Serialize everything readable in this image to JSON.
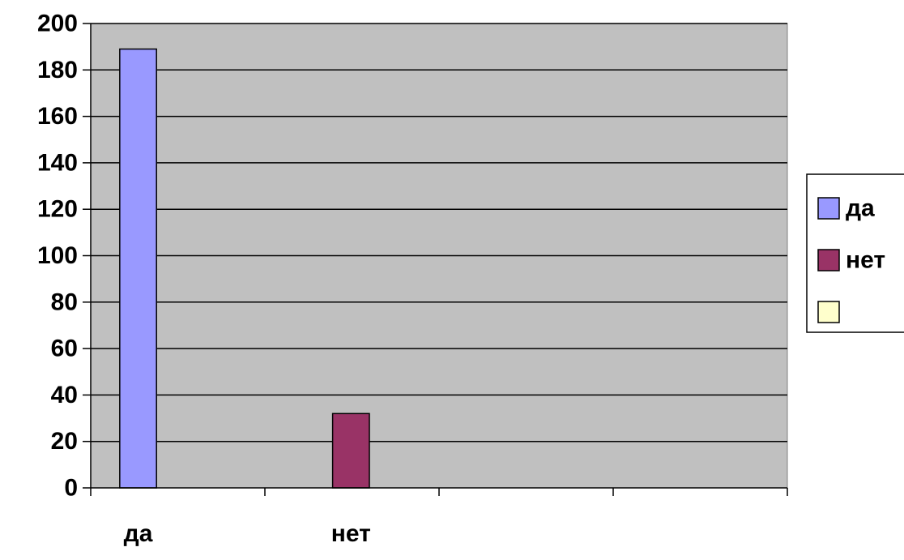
{
  "chart_data": {
    "type": "bar",
    "categories": [
      "да",
      "нет",
      "",
      ""
    ],
    "series": [
      {
        "name": "да",
        "values": [
          189,
          null,
          null,
          null
        ],
        "color": "#9999ff"
      },
      {
        "name": "нет",
        "values": [
          null,
          32,
          null,
          null
        ],
        "color": "#993366"
      },
      {
        "name": "",
        "values": [
          null,
          null,
          null,
          null
        ],
        "color": "#ffffcc"
      }
    ],
    "title": "",
    "xlabel": "",
    "ylabel": "",
    "ylim": [
      0,
      200
    ],
    "yticks": [
      0,
      20,
      40,
      60,
      80,
      100,
      120,
      140,
      160,
      180,
      200
    ],
    "grid": true,
    "plot_background": "#c0c0c0",
    "legend": {
      "position": "right",
      "entries": [
        "да",
        "нет",
        ""
      ]
    }
  }
}
